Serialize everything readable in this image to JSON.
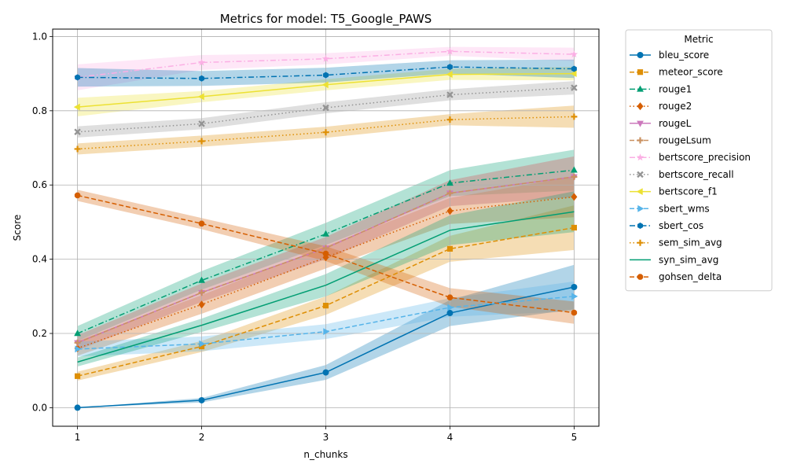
{
  "chart_data": {
    "type": "line",
    "title": "Metrics for model: T5_Google_PAWS",
    "xlabel": "n_chunks",
    "ylabel": "Score",
    "x": [
      1,
      2,
      3,
      4,
      5
    ],
    "xlim": [
      0.8,
      5.2
    ],
    "ylim": [
      -0.05,
      1.02
    ],
    "xticks": [
      "1",
      "2",
      "3",
      "4",
      "5"
    ],
    "yticks": [
      "0.0",
      "0.2",
      "0.4",
      "0.6",
      "0.8",
      "1.0"
    ],
    "grid": true,
    "legend": {
      "title": "Metric",
      "placement": "outside-right"
    },
    "series": [
      {
        "name": "bleu_score",
        "color": "#0173b2",
        "marker": "circle",
        "dash": "solid",
        "values": [
          0.0,
          0.02,
          0.095,
          0.255,
          0.325
        ],
        "band": [
          0.0,
          0.006,
          0.02,
          0.035,
          0.06
        ]
      },
      {
        "name": "meteor_score",
        "color": "#de8f05",
        "marker": "square",
        "dash": "dashed",
        "values": [
          0.085,
          0.165,
          0.275,
          0.428,
          0.485
        ],
        "band": [
          0.012,
          0.015,
          0.025,
          0.035,
          0.06
        ]
      },
      {
        "name": "rouge1",
        "color": "#029e73",
        "marker": "triangle-up",
        "dash": "dashdot",
        "values": [
          0.2,
          0.343,
          0.468,
          0.605,
          0.64
        ],
        "band": [
          0.02,
          0.025,
          0.03,
          0.035,
          0.055
        ]
      },
      {
        "name": "rouge2",
        "color": "#d55e00",
        "marker": "diamond",
        "dash": "dotted",
        "values": [
          0.16,
          0.278,
          0.405,
          0.53,
          0.568
        ],
        "band": [
          0.02,
          0.025,
          0.03,
          0.035,
          0.055
        ]
      },
      {
        "name": "rougeL",
        "color": "#cc78bc",
        "marker": "triangle-down",
        "dash": "solid",
        "values": [
          0.175,
          0.31,
          0.43,
          0.578,
          0.622
        ],
        "band": [
          0.02,
          0.025,
          0.03,
          0.035,
          0.055
        ]
      },
      {
        "name": "rougeLsum",
        "color": "#ca9161",
        "marker": "plus",
        "dash": "dashed",
        "values": [
          0.175,
          0.31,
          0.43,
          0.578,
          0.622
        ],
        "band": [
          0.02,
          0.025,
          0.03,
          0.035,
          0.055
        ]
      },
      {
        "name": "bertscore_precision",
        "color": "#fbafe4",
        "marker": "star",
        "dash": "dashdot",
        "values": [
          0.89,
          0.93,
          0.94,
          0.96,
          0.952
        ],
        "band": [
          0.035,
          0.02,
          0.015,
          0.012,
          0.018
        ]
      },
      {
        "name": "bertscore_recall",
        "color": "#949494",
        "marker": "x",
        "dash": "dotted",
        "values": [
          0.743,
          0.765,
          0.808,
          0.843,
          0.862
        ],
        "band": [
          0.015,
          0.015,
          0.015,
          0.015,
          0.018
        ]
      },
      {
        "name": "bertscore_f1",
        "color": "#ece133",
        "marker": "triangle-left",
        "dash": "solid",
        "values": [
          0.81,
          0.838,
          0.87,
          0.898,
          0.9
        ],
        "band": [
          0.025,
          0.015,
          0.015,
          0.015,
          0.018
        ]
      },
      {
        "name": "sbert_wms",
        "color": "#56b4e9",
        "marker": "triangle-right",
        "dash": "dashed",
        "values": [
          0.158,
          0.172,
          0.205,
          0.27,
          0.3
        ],
        "band": [
          0.02,
          0.02,
          0.02,
          0.025,
          0.04
        ]
      },
      {
        "name": "sbert_cos",
        "color": "#0173b2",
        "marker": "hexagon",
        "dash": "dashdot",
        "values": [
          0.89,
          0.887,
          0.896,
          0.918,
          0.913
        ],
        "band": [
          0.025,
          0.02,
          0.02,
          0.018,
          0.025
        ]
      },
      {
        "name": "sem_sim_avg",
        "color": "#de8f05",
        "marker": "plus",
        "dash": "dotted",
        "values": [
          0.697,
          0.718,
          0.742,
          0.776,
          0.784
        ],
        "band": [
          0.015,
          0.015,
          0.015,
          0.015,
          0.03
        ]
      },
      {
        "name": "syn_sim_avg",
        "color": "#029e73",
        "marker": "none",
        "dash": "solid",
        "values": [
          0.123,
          0.222,
          0.33,
          0.478,
          0.528
        ],
        "band": [
          0.012,
          0.018,
          0.03,
          0.04,
          0.055
        ]
      },
      {
        "name": "gohsen_delta",
        "color": "#d55e00",
        "marker": "octagon",
        "dash": "dashed",
        "values": [
          0.572,
          0.496,
          0.415,
          0.297,
          0.256
        ],
        "band": [
          0.015,
          0.015,
          0.02,
          0.025,
          0.03
        ]
      }
    ]
  }
}
